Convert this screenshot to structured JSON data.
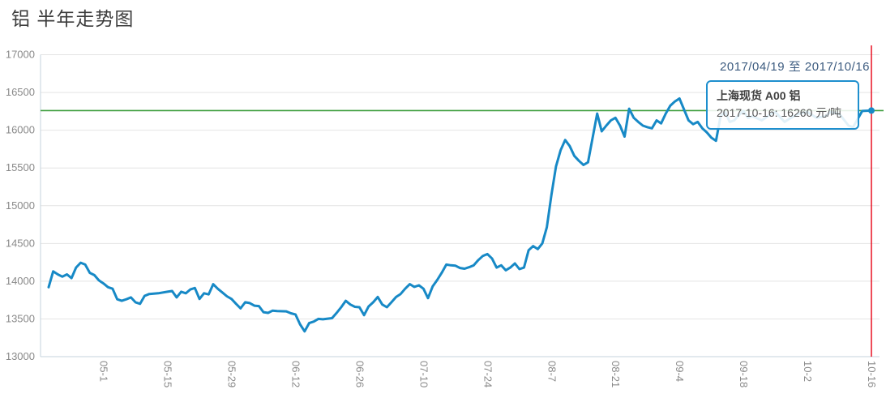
{
  "header": {
    "title": "铝 半年走势图",
    "date_range": "2017/04/19 至 2017/10/16"
  },
  "tooltip": {
    "series_name": "上海现货 A00 铝",
    "value_line": "2017-10-16: 16260 元/吨"
  },
  "colors": {
    "series_line": "#1789c6",
    "reference_line": "#3d9e3d",
    "crosshair_line": "#e60012",
    "grid_line": "#e4e4e4",
    "axis_line": "#c6d3dd",
    "axis_label": "#8a8a8a",
    "date_label": "#3d5c80",
    "tooltip_border": "#1e8fce",
    "marker_dot": "#1789c6"
  },
  "chart_data": {
    "type": "line",
    "title": "铝 半年走势图",
    "series_name": "上海现货 A00 铝",
    "unit": "元/吨",
    "x_start_date": "2017-04-19",
    "x_end_date": "2017-10-16",
    "x_note": "points are [day offset from 2017-04-19, price]",
    "grid": true,
    "legend": false,
    "ylim": [
      13000,
      17000
    ],
    "y_ticks": [
      17000,
      16500,
      16000,
      15500,
      15000,
      14500,
      14000,
      13500,
      13000
    ],
    "x_ticks": [
      {
        "label": "05-1",
        "day": 12
      },
      {
        "label": "05-15",
        "day": 26
      },
      {
        "label": "05-29",
        "day": 40
      },
      {
        "label": "06-12",
        "day": 54
      },
      {
        "label": "06-26",
        "day": 68
      },
      {
        "label": "07-10",
        "day": 82
      },
      {
        "label": "07-24",
        "day": 96
      },
      {
        "label": "08-7",
        "day": 110
      },
      {
        "label": "08-21",
        "day": 124
      },
      {
        "label": "09-4",
        "day": 138
      },
      {
        "label": "09-18",
        "day": 152
      },
      {
        "label": "10-2",
        "day": 166
      },
      {
        "label": "10-16",
        "day": 180
      }
    ],
    "reference_line_value": 16260,
    "crosshair_day": 180,
    "last_point": {
      "date": "2017-10-16",
      "value": 16260
    },
    "points": [
      [
        0,
        13920
      ],
      [
        1,
        14130
      ],
      [
        2,
        14090
      ],
      [
        3,
        14060
      ],
      [
        4,
        14090
      ],
      [
        5,
        14040
      ],
      [
        6,
        14180
      ],
      [
        7,
        14245
      ],
      [
        8,
        14220
      ],
      [
        9,
        14110
      ],
      [
        10,
        14080
      ],
      [
        11,
        14010
      ],
      [
        12,
        13970
      ],
      [
        13,
        13920
      ],
      [
        14,
        13900
      ],
      [
        15,
        13760
      ],
      [
        16,
        13740
      ],
      [
        17,
        13760
      ],
      [
        18,
        13785
      ],
      [
        19,
        13720
      ],
      [
        20,
        13700
      ],
      [
        21,
        13805
      ],
      [
        22,
        13830
      ],
      [
        24,
        13840
      ],
      [
        26,
        13860
      ],
      [
        27,
        13870
      ],
      [
        28,
        13785
      ],
      [
        29,
        13860
      ],
      [
        30,
        13840
      ],
      [
        31,
        13890
      ],
      [
        32,
        13910
      ],
      [
        33,
        13765
      ],
      [
        34,
        13840
      ],
      [
        35,
        13825
      ],
      [
        36,
        13960
      ],
      [
        37,
        13900
      ],
      [
        38,
        13850
      ],
      [
        39,
        13800
      ],
      [
        40,
        13765
      ],
      [
        41,
        13700
      ],
      [
        42,
        13640
      ],
      [
        43,
        13720
      ],
      [
        44,
        13710
      ],
      [
        45,
        13675
      ],
      [
        46,
        13670
      ],
      [
        47,
        13590
      ],
      [
        48,
        13580
      ],
      [
        49,
        13610
      ],
      [
        50,
        13605
      ],
      [
        52,
        13600
      ],
      [
        53,
        13575
      ],
      [
        54,
        13560
      ],
      [
        55,
        13430
      ],
      [
        56,
        13335
      ],
      [
        57,
        13445
      ],
      [
        58,
        13465
      ],
      [
        59,
        13500
      ],
      [
        60,
        13495
      ],
      [
        62,
        13510
      ],
      [
        63,
        13580
      ],
      [
        64,
        13655
      ],
      [
        65,
        13740
      ],
      [
        66,
        13690
      ],
      [
        67,
        13660
      ],
      [
        68,
        13655
      ],
      [
        69,
        13550
      ],
      [
        70,
        13665
      ],
      [
        71,
        13720
      ],
      [
        72,
        13790
      ],
      [
        73,
        13690
      ],
      [
        74,
        13655
      ],
      [
        75,
        13720
      ],
      [
        76,
        13790
      ],
      [
        77,
        13830
      ],
      [
        78,
        13900
      ],
      [
        79,
        13960
      ],
      [
        80,
        13925
      ],
      [
        81,
        13945
      ],
      [
        82,
        13900
      ],
      [
        83,
        13775
      ],
      [
        84,
        13930
      ],
      [
        85,
        14015
      ],
      [
        86,
        14110
      ],
      [
        87,
        14220
      ],
      [
        88,
        14210
      ],
      [
        89,
        14205
      ],
      [
        90,
        14175
      ],
      [
        91,
        14165
      ],
      [
        92,
        14185
      ],
      [
        93,
        14210
      ],
      [
        94,
        14280
      ],
      [
        95,
        14335
      ],
      [
        96,
        14360
      ],
      [
        97,
        14300
      ],
      [
        98,
        14180
      ],
      [
        99,
        14210
      ],
      [
        100,
        14145
      ],
      [
        101,
        14180
      ],
      [
        102,
        14235
      ],
      [
        103,
        14160
      ],
      [
        104,
        14180
      ],
      [
        105,
        14410
      ],
      [
        106,
        14465
      ],
      [
        107,
        14425
      ],
      [
        108,
        14500
      ],
      [
        109,
        14715
      ],
      [
        110,
        15145
      ],
      [
        111,
        15520
      ],
      [
        112,
        15735
      ],
      [
        113,
        15870
      ],
      [
        114,
        15790
      ],
      [
        115,
        15660
      ],
      [
        116,
        15595
      ],
      [
        117,
        15540
      ],
      [
        118,
        15575
      ],
      [
        119,
        15895
      ],
      [
        120,
        16220
      ],
      [
        121,
        15985
      ],
      [
        122,
        16060
      ],
      [
        123,
        16130
      ],
      [
        124,
        16165
      ],
      [
        125,
        16060
      ],
      [
        126,
        15915
      ],
      [
        127,
        16285
      ],
      [
        128,
        16165
      ],
      [
        129,
        16110
      ],
      [
        130,
        16060
      ],
      [
        131,
        16040
      ],
      [
        132,
        16025
      ],
      [
        133,
        16130
      ],
      [
        134,
        16090
      ],
      [
        135,
        16220
      ],
      [
        136,
        16325
      ],
      [
        137,
        16380
      ],
      [
        138,
        16420
      ],
      [
        139,
        16275
      ],
      [
        140,
        16130
      ],
      [
        141,
        16080
      ],
      [
        142,
        16110
      ],
      [
        143,
        16025
      ],
      [
        144,
        15970
      ],
      [
        145,
        15900
      ],
      [
        146,
        15860
      ],
      [
        147,
        16185
      ],
      [
        148,
        16240
      ],
      [
        149,
        16110
      ],
      [
        150,
        16130
      ],
      [
        151,
        16200
      ],
      [
        152,
        16255
      ],
      [
        153,
        16165
      ],
      [
        154,
        16185
      ],
      [
        156,
        16130
      ],
      [
        157,
        16170
      ],
      [
        158,
        16215
      ],
      [
        159,
        16240
      ],
      [
        161,
        16110
      ],
      [
        162,
        16150
      ],
      [
        164,
        16215
      ],
      [
        166,
        16240
      ],
      [
        168,
        16165
      ],
      [
        170,
        16185
      ],
      [
        171,
        16240
      ],
      [
        173,
        16215
      ],
      [
        175,
        16060
      ],
      [
        176,
        16040
      ],
      [
        178,
        16255
      ],
      [
        180,
        16260
      ]
    ]
  }
}
